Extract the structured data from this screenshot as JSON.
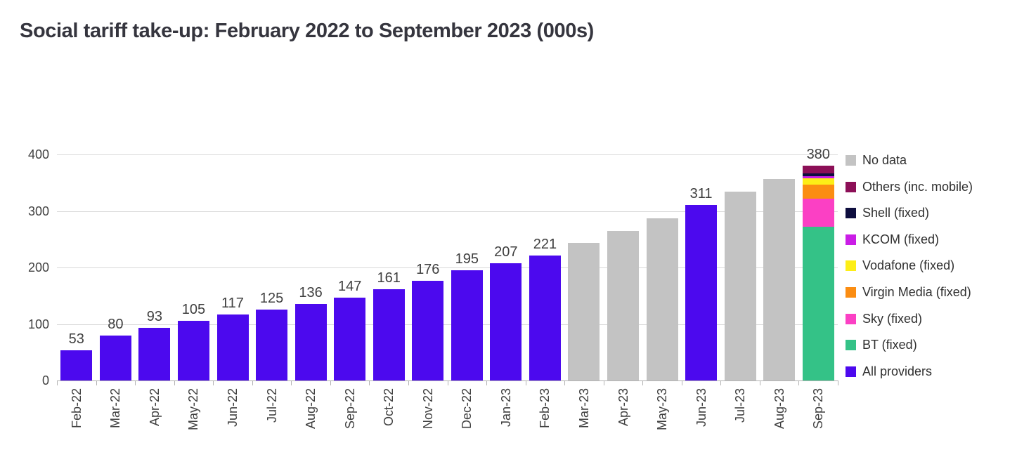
{
  "page": {
    "title": "Social tariff take-up: February 2022 to September 2023 (000s)"
  },
  "chart_data": {
    "type": "bar",
    "title": "Social tariff take-up: February 2022 to September 2023 (000s)",
    "xlabel": "",
    "ylabel": "",
    "ylim": [
      0,
      400
    ],
    "yticks": [
      0,
      100,
      200,
      300,
      400
    ],
    "grid": true,
    "legend_position": "right",
    "categories": [
      "Feb-22",
      "Mar-22",
      "Apr-22",
      "May-22",
      "Jun-22",
      "Jul-22",
      "Aug-22",
      "Sep-22",
      "Oct-22",
      "Nov-22",
      "Dec-22",
      "Jan-23",
      "Feb-23",
      "Mar-23",
      "Apr-23",
      "May-23",
      "Jun-23",
      "Jul-23",
      "Aug-23",
      "Sep-23"
    ],
    "bars": [
      {
        "month": "Feb-22",
        "series": "All providers",
        "value": 53,
        "label": "53"
      },
      {
        "month": "Mar-22",
        "series": "All providers",
        "value": 80,
        "label": "80"
      },
      {
        "month": "Apr-22",
        "series": "All providers",
        "value": 93,
        "label": "93"
      },
      {
        "month": "May-22",
        "series": "All providers",
        "value": 105,
        "label": "105"
      },
      {
        "month": "Jun-22",
        "series": "All providers",
        "value": 117,
        "label": "117"
      },
      {
        "month": "Jul-22",
        "series": "All providers",
        "value": 125,
        "label": "125"
      },
      {
        "month": "Aug-22",
        "series": "All providers",
        "value": 136,
        "label": "136"
      },
      {
        "month": "Sep-22",
        "series": "All providers",
        "value": 147,
        "label": "147"
      },
      {
        "month": "Oct-22",
        "series": "All providers",
        "value": 161,
        "label": "161"
      },
      {
        "month": "Nov-22",
        "series": "All providers",
        "value": 176,
        "label": "176"
      },
      {
        "month": "Dec-22",
        "series": "All providers",
        "value": 195,
        "label": "195"
      },
      {
        "month": "Jan-23",
        "series": "All providers",
        "value": 207,
        "label": "207"
      },
      {
        "month": "Feb-23",
        "series": "All providers",
        "value": 221,
        "label": "221"
      },
      {
        "month": "Mar-23",
        "series": "No data",
        "value": 243,
        "label": ""
      },
      {
        "month": "Apr-23",
        "series": "No data",
        "value": 265,
        "label": ""
      },
      {
        "month": "May-23",
        "series": "No data",
        "value": 287,
        "label": ""
      },
      {
        "month": "Jun-23",
        "series": "All providers",
        "value": 311,
        "label": "311"
      },
      {
        "month": "Jul-23",
        "series": "No data",
        "value": 334,
        "label": ""
      },
      {
        "month": "Aug-23",
        "series": "No data",
        "value": 357,
        "label": ""
      },
      {
        "month": "Sep-23",
        "series": "stacked",
        "total": 380,
        "label": "380",
        "segments": [
          {
            "name": "BT (fixed)",
            "value": 272
          },
          {
            "name": "Sky (fixed)",
            "value": 50
          },
          {
            "name": "Virgin Media (fixed)",
            "value": 24
          },
          {
            "name": "Vodafone (fixed)",
            "value": 12
          },
          {
            "name": "KCOM (fixed)",
            "value": 4
          },
          {
            "name": "Shell (fixed)",
            "value": 4
          },
          {
            "name": "Others (inc. mobile)",
            "value": 14
          }
        ]
      }
    ],
    "legend": [
      {
        "label": "No data",
        "color": "#c3c3c3"
      },
      {
        "label": "Others (inc. mobile)",
        "color": "#8c0f57"
      },
      {
        "label": "Shell (fixed)",
        "color": "#0e0e3e"
      },
      {
        "label": "KCOM (fixed)",
        "color": "#ca1de6"
      },
      {
        "label": "Vodafone (fixed)",
        "color": "#fdee17"
      },
      {
        "label": "Virgin Media (fixed)",
        "color": "#fb8d12"
      },
      {
        "label": "Sky (fixed)",
        "color": "#fb40c4"
      },
      {
        "label": "BT (fixed)",
        "color": "#34c287"
      },
      {
        "label": "All providers",
        "color": "#4c09ee"
      }
    ]
  }
}
